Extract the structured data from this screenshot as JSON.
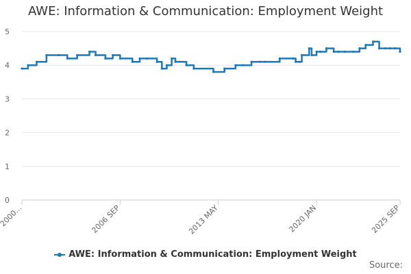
{
  "chart_data": {
    "type": "line",
    "title": "AWE: Information & Communication: Employment Weight",
    "xlabel": "",
    "ylabel": "",
    "ylim": [
      0,
      5
    ],
    "yticks": [
      0,
      1,
      2,
      3,
      4,
      5
    ],
    "grid": true,
    "x_tick_labels": [
      "2000...",
      "2006 SEP",
      "2013 MAY",
      "2020 JAN",
      "2025 SEP"
    ],
    "x_tick_positions": [
      0,
      80,
      160,
      240,
      308
    ],
    "series": [
      {
        "name": "AWE: Information & Communication: Employment Weight",
        "color": "#1f77b4",
        "x": [
          0,
          5,
          12,
          20,
          30,
          37,
          45,
          55,
          60,
          68,
          74,
          80,
          90,
          96,
          102,
          110,
          114,
          118,
          122,
          125,
          134,
          140,
          156,
          165,
          174,
          180,
          187,
          194,
          198,
          210,
          221,
          223,
          226,
          228,
          234,
          236,
          240,
          243,
          248,
          254,
          258,
          263,
          270,
          275,
          280,
          286,
          291,
          296,
          300,
          304,
          308
        ],
        "values": [
          3.9,
          4.0,
          4.1,
          4.3,
          4.3,
          4.2,
          4.3,
          4.4,
          4.3,
          4.2,
          4.3,
          4.2,
          4.1,
          4.2,
          4.2,
          4.1,
          3.9,
          4.0,
          4.2,
          4.1,
          4.0,
          3.9,
          3.8,
          3.9,
          4.0,
          4.0,
          4.1,
          4.1,
          4.1,
          4.2,
          4.2,
          4.1,
          4.1,
          4.3,
          4.5,
          4.3,
          4.4,
          4.4,
          4.5,
          4.4,
          4.4,
          4.4,
          4.4,
          4.5,
          4.6,
          4.7,
          4.5,
          4.5,
          4.5,
          4.5,
          4.4
        ]
      }
    ],
    "legend_position": "bottom-center",
    "source_label": "Source:"
  }
}
